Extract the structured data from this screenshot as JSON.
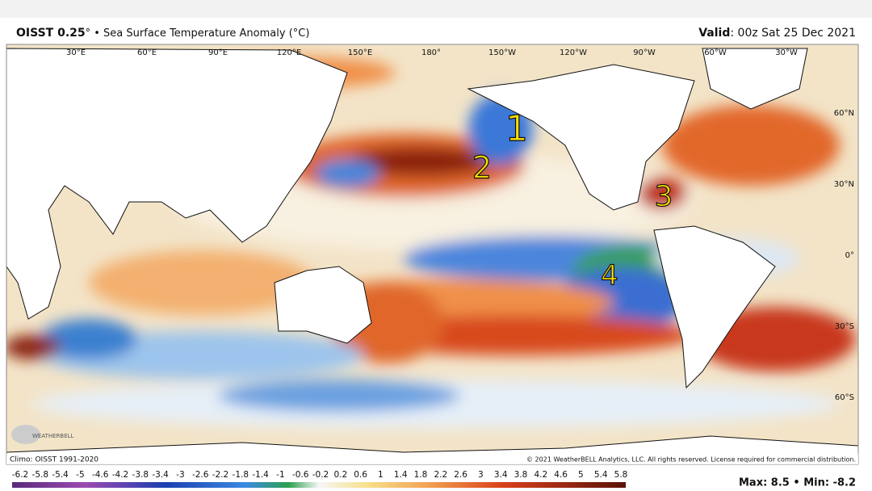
{
  "header": {
    "title_bold": "OISST 0.25",
    "title_rest": "° • Sea Surface Temperature Anomaly (°C)",
    "valid_bold": "Valid",
    "valid_rest": ": 00z Sat 25 Dec 2021"
  },
  "map": {
    "lon_labels": [
      "30°E",
      "60°E",
      "90°E",
      "120°E",
      "150°E",
      "180°",
      "150°W",
      "120°W",
      "90°W",
      "60°W",
      "30°W"
    ],
    "lat_labels": [
      "60°N",
      "30°N",
      "0°",
      "30°S",
      "60°S"
    ],
    "annotations": [
      "1",
      "2",
      "3",
      "4"
    ],
    "logo": "WEATHERBELL"
  },
  "footer": {
    "climo": "Climo: OISST 1991-2020",
    "copyright": "© 2021 WeatherBELL Analytics, LLC. All rights reserved. License required for commercial distribution.",
    "colorbar_labels": [
      "-6.2",
      "-5.8",
      "-5.4",
      "-5",
      "-4.6",
      "-4.2",
      "-3.8",
      "-3.4",
      "-3",
      "-2.6",
      "-2.2",
      "-1.8",
      "-1.4",
      "-1",
      "-0.6",
      "-0.2",
      "0.2",
      "0.6",
      "1",
      "1.4",
      "1.8",
      "2.2",
      "2.6",
      "3",
      "3.4",
      "3.8",
      "4.2",
      "4.6",
      "5",
      "5.4",
      "5.8"
    ],
    "maxmin": "Max: 8.5 • Min: -8.2"
  }
}
